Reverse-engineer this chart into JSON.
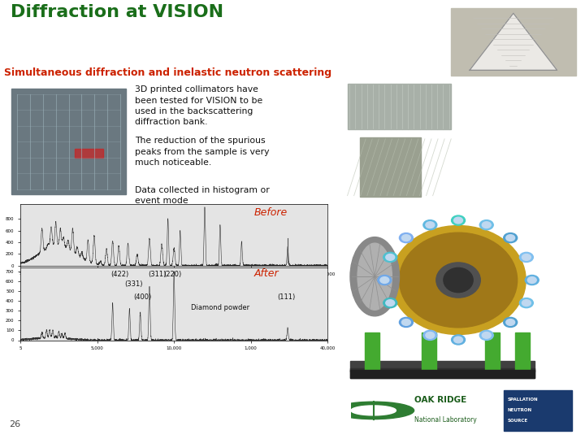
{
  "title": "Diffraction at VISION",
  "subtitle": "Simultaneous diffraction and inelastic neutron scattering",
  "title_color": "#1a6e1a",
  "subtitle_color": "#cc2200",
  "slide_bg": "#ffffff",
  "subtitle_bg": "#d8d8d8",
  "text_blocks": [
    "3D printed collimators have\nbeen tested for VISION to be\nused in the backscattering\ndiffraction bank.",
    "The reduction of the spurious\npeaks from the sample is very\nmuch noticeable.",
    "Data collected in histogram or\nevent mode"
  ],
  "before_label": "Before",
  "after_label": "After",
  "footer_number": "26",
  "chart_bg": "#e4e4e4",
  "chart_line_color": "#303030"
}
